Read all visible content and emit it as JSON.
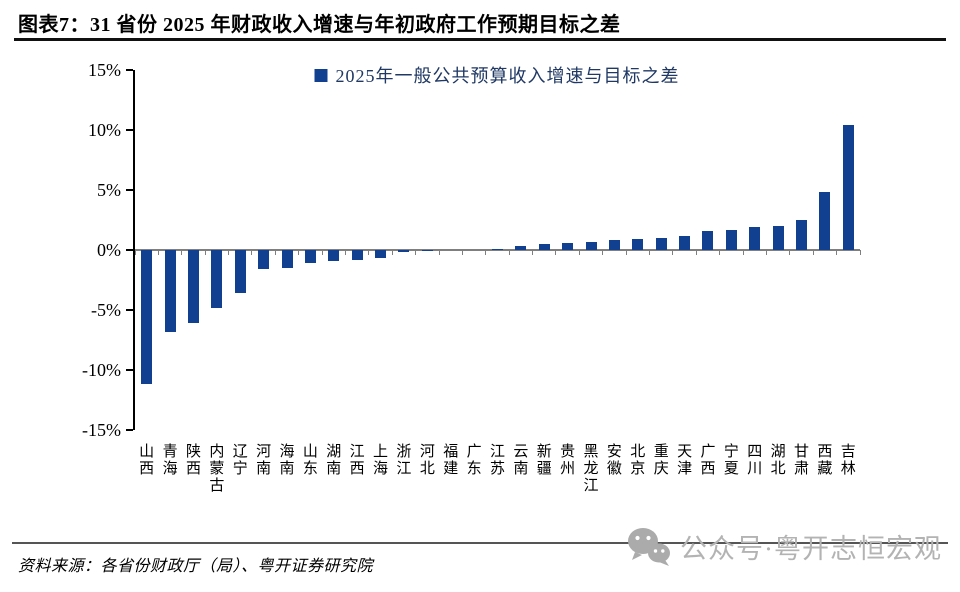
{
  "header": {
    "title": "图表7：31 省份 2025 年财政收入增速与年初政府工作预期目标之差"
  },
  "chart_data": {
    "type": "bar",
    "title": "31 省份 2025 年财政收入增速与年初政府工作预期目标之差",
    "legend": [
      {
        "label": "2025年一般公共预算收入增速与目标之差",
        "color": "#10408f"
      }
    ],
    "categories": [
      "山西",
      "青海",
      "陕西",
      "内蒙古",
      "辽宁",
      "河南",
      "海南",
      "山东",
      "湖南",
      "江西",
      "上海",
      "浙江",
      "河北",
      "福建",
      "广东",
      "江苏",
      "云南",
      "新疆",
      "贵州",
      "黑龙江",
      "安徽",
      "北京",
      "重庆",
      "天津",
      "广西",
      "宁夏",
      "四川",
      "湖北",
      "甘肃",
      "西藏",
      "吉林"
    ],
    "values": [
      -11.2,
      -6.8,
      -6.1,
      -4.8,
      -3.6,
      -1.6,
      -1.5,
      -1.1,
      -0.9,
      -0.8,
      -0.7,
      -0.2,
      -0.1,
      0,
      0,
      0.1,
      0.3,
      0.5,
      0.6,
      0.7,
      0.8,
      0.9,
      1.0,
      1.2,
      1.6,
      1.7,
      1.9,
      2.0,
      2.5,
      4.8,
      10.4
    ],
    "xlabel": "",
    "ylabel": "",
    "ylim": [
      -15,
      15
    ],
    "y_ticks": [
      "15%",
      "10%",
      "5%",
      "0%",
      "-5%",
      "-10%",
      "-15%"
    ],
    "grid": false,
    "legend_position": "top-center",
    "bar_color": "#10408f",
    "unit": "%"
  },
  "footer": {
    "source": "资料来源：各省份财政厅（局）、粤开证券研究院"
  },
  "watermark": {
    "icon": "wechat-icon",
    "text": "公众号·粤开志恒宏观"
  }
}
